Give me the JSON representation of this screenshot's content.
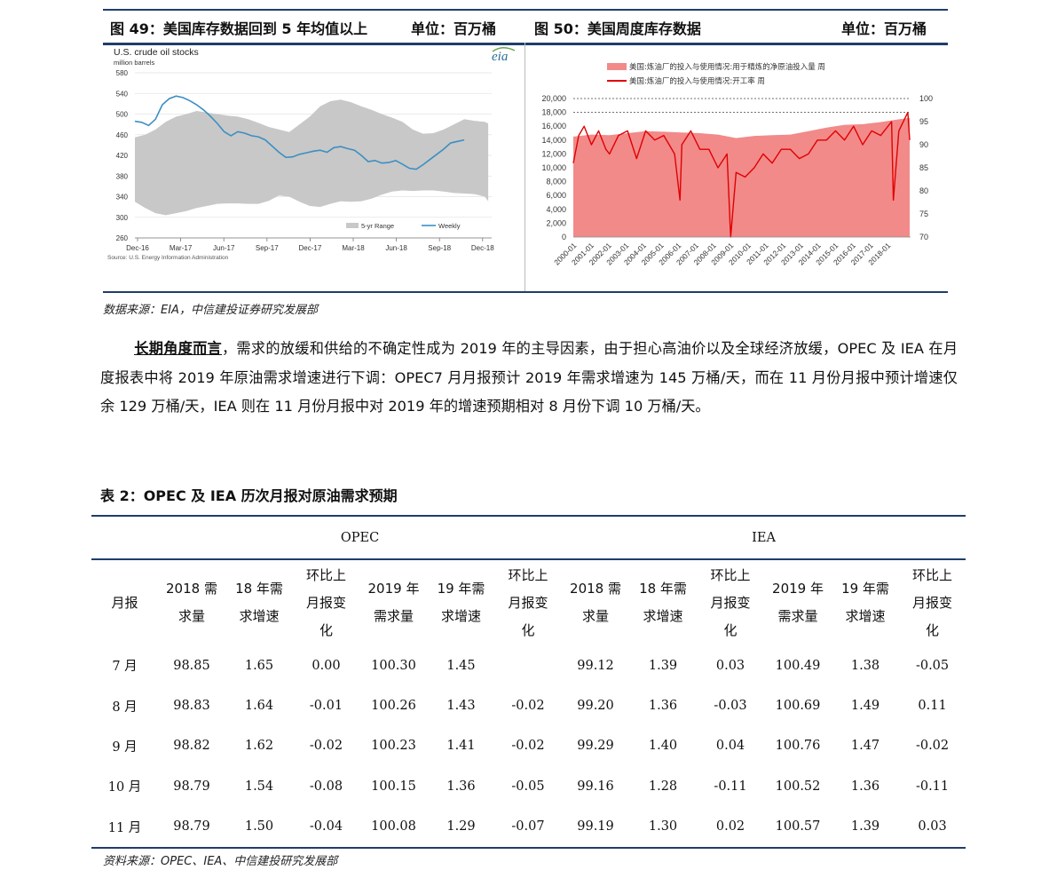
{
  "figure_header": {
    "left_title": "图 49：美国库存数据回到 5 年均值以上",
    "left_unit": "单位：百万桶",
    "right_title": "图 50：美国周度库存数据",
    "right_unit": "单位：百万桶"
  },
  "chart_left": {
    "chart_data": {
      "type": "area",
      "title": "U.S. crude oil stocks",
      "subtitle": "million barrels",
      "logo": "eia",
      "x_ticks": [
        "Dec-16",
        "Mar-17",
        "Jun-17",
        "Sep-17",
        "Dec-17",
        "Mar-18",
        "Jun-18",
        "Sep-18",
        "Dec-18"
      ],
      "y_ticks": [
        260,
        300,
        340,
        380,
        420,
        460,
        500,
        540,
        580
      ],
      "ylim": [
        260,
        580
      ],
      "legend": [
        "5-yr Range",
        "Weekly"
      ],
      "legend_position": "bottom-right",
      "source": "Source: U.S. Energy Information Administration",
      "series": [
        {
          "name": "5-yr Range",
          "type": "range",
          "x": [
            0,
            3,
            6,
            9,
            12,
            15,
            18,
            21,
            24,
            27,
            30,
            33,
            36,
            39,
            42,
            45,
            48,
            51,
            54,
            57,
            60,
            63,
            66,
            69,
            72,
            75,
            78,
            81,
            84,
            87,
            90,
            93,
            96,
            99,
            102,
            103
          ],
          "high": [
            455,
            460,
            470,
            485,
            495,
            500,
            506,
            503,
            500,
            497,
            495,
            490,
            483,
            475,
            470,
            465,
            480,
            495,
            515,
            525,
            528,
            523,
            515,
            508,
            500,
            493,
            485,
            470,
            462,
            463,
            470,
            480,
            490,
            487,
            485,
            482
          ],
          "low": [
            330,
            318,
            308,
            304,
            308,
            312,
            318,
            322,
            326,
            327,
            327,
            326,
            326,
            332,
            342,
            340,
            330,
            322,
            320,
            326,
            331,
            330,
            331,
            336,
            344,
            350,
            352,
            351,
            352,
            352,
            350,
            347,
            346,
            345,
            340,
            331
          ]
        },
        {
          "name": "Weekly",
          "type": "line",
          "color": "#3c8fc4",
          "x": [
            0,
            2,
            4,
            6,
            8,
            10,
            12,
            14,
            16,
            18,
            20,
            22,
            24,
            26,
            28,
            30,
            32,
            34,
            36,
            38,
            40,
            42,
            44,
            46,
            48,
            50,
            52,
            54,
            56,
            58,
            60,
            62,
            64,
            66,
            68,
            70,
            72,
            74,
            76,
            78,
            80,
            82,
            84,
            86,
            88,
            90,
            92,
            94,
            96
          ],
          "y": [
            486,
            484,
            478,
            490,
            518,
            530,
            535,
            532,
            526,
            518,
            508,
            496,
            482,
            466,
            458,
            466,
            463,
            458,
            456,
            450,
            438,
            426,
            416,
            417,
            422,
            425,
            428,
            430,
            426,
            435,
            437,
            433,
            430,
            420,
            408,
            410,
            405,
            406,
            410,
            403,
            395,
            393,
            402,
            412,
            422,
            432,
            444,
            447,
            450
          ]
        }
      ]
    }
  },
  "chart_right": {
    "chart_data": {
      "type": "area",
      "title": "",
      "legend": [
        "美国:炼油厂的投入与使用情况:用于精炼的净原油投入量 周",
        "美国:炼油厂的投入与使用情况:开工率 周"
      ],
      "legend_position": "top",
      "x_ticks": [
        "2000-01",
        "2001-01",
        "2002-01",
        "2003-01",
        "2004-01",
        "2005-01",
        "2006-01",
        "2007-01",
        "2008-01",
        "2009-01",
        "2010-01",
        "2011-01",
        "2012-01",
        "2013-01",
        "2014-01",
        "2015-01",
        "2016-01",
        "2017-01",
        "2018-01"
      ],
      "y_left_ticks": [
        0,
        2000,
        4000,
        6000,
        8000,
        10000,
        12000,
        14000,
        16000,
        18000,
        20000
      ],
      "y_right_ticks": [
        70,
        75,
        80,
        85,
        90,
        95,
        100
      ],
      "ylim_left": [
        0,
        20000
      ],
      "ylim_right": [
        70,
        100
      ],
      "series": [
        {
          "name": "美国:炼油厂的投入与使用情况:用于精炼的净原油投入量 周",
          "type": "area",
          "axis": "left",
          "color": "#f28a8a",
          "x": [
            2000,
            2001,
            2002,
            2003,
            2004,
            2005,
            2006,
            2007,
            2008,
            2009,
            2010,
            2011,
            2012,
            2013,
            2014,
            2015,
            2016,
            2017,
            2018,
            2018.6
          ],
          "y": [
            14500,
            14800,
            14700,
            15000,
            15300,
            15200,
            15100,
            15000,
            14800,
            14300,
            14600,
            14700,
            14800,
            15300,
            15800,
            16200,
            16300,
            16600,
            17000,
            17200
          ]
        },
        {
          "name": "美国:炼油厂的投入与使用情况:开工率 周",
          "type": "line",
          "axis": "right",
          "color": "#e00000",
          "x": [
            2000,
            2000.3,
            2000.6,
            2001,
            2001.4,
            2001.8,
            2002,
            2002.5,
            2003,
            2003.5,
            2004,
            2004.5,
            2005,
            2005.6,
            2005.9,
            2006,
            2006.5,
            2007,
            2007.5,
            2008,
            2008.5,
            2008.7,
            2009,
            2009.5,
            2010,
            2010.5,
            2011,
            2011.5,
            2012,
            2012.5,
            2013,
            2013.5,
            2014,
            2014.5,
            2015,
            2015.5,
            2016,
            2016.5,
            2017,
            2017.6,
            2017.7,
            2018,
            2018.5,
            2018.6
          ],
          "y": [
            86,
            92,
            94,
            90,
            93,
            89,
            88,
            92,
            93,
            87,
            93,
            91,
            92,
            88,
            78,
            90,
            93,
            89,
            89,
            85,
            88,
            70,
            84,
            83,
            85,
            88,
            86,
            89,
            89,
            87,
            88,
            91,
            91,
            93,
            91,
            94,
            90,
            93,
            92,
            95,
            78,
            93,
            97,
            91
          ]
        }
      ],
      "reference_lines": [
        18000,
        20000
      ]
    }
  },
  "figure_source": "数据来源：EIA，中信建投证券研究发展部",
  "paragraph": {
    "lead": "长期角度而言",
    "text": "，需求的放缓和供给的不确定性成为 2019 年的主导因素，由于担心高油价以及全球经济放缓，OPEC 及 IEA 在月度报表中将 2019 年原油需求增速进行下调：OPEC7 月月报预计 2019 年需求增速为 145 万桶/天，而在 11 月份月报中预计增速仅余 129 万桶/天，IEA 则在 11 月份月报中对 2019 年的增速预期相对 8 月份下调 10 万桶/天。"
  },
  "table": {
    "title": "表 2：OPEC 及 IEA 历次月报对原油需求预期",
    "group_opec": "OPEC",
    "group_iea": "IEA",
    "columns": [
      "月报",
      "2018 需求量",
      "18 年需求增速",
      "环比上月报变化",
      "2019 年需求量",
      "19 年需求增速",
      "环比上月报变化",
      "2018 需求量",
      "18 年需求增速",
      "环比上月报变化",
      "2019 年需求量",
      "19 年需求增速",
      "环比上月报变化"
    ],
    "rows": [
      [
        "7 月",
        "98.85",
        "1.65",
        "0.00",
        "100.30",
        "1.45",
        "",
        "99.12",
        "1.39",
        "0.03",
        "100.49",
        "1.38",
        "-0.05"
      ],
      [
        "8 月",
        "98.83",
        "1.64",
        "-0.01",
        "100.26",
        "1.43",
        "-0.02",
        "99.20",
        "1.36",
        "-0.03",
        "100.69",
        "1.49",
        "0.11"
      ],
      [
        "9 月",
        "98.82",
        "1.62",
        "-0.02",
        "100.23",
        "1.41",
        "-0.02",
        "99.29",
        "1.40",
        "0.04",
        "100.76",
        "1.47",
        "-0.02"
      ],
      [
        "10 月",
        "98.79",
        "1.54",
        "-0.08",
        "100.15",
        "1.36",
        "-0.05",
        "99.16",
        "1.28",
        "-0.11",
        "100.52",
        "1.36",
        "-0.11"
      ],
      [
        "11 月",
        "98.79",
        "1.50",
        "-0.04",
        "100.08",
        "1.29",
        "-0.07",
        "99.19",
        "1.30",
        "0.02",
        "100.57",
        "1.39",
        "0.03"
      ]
    ],
    "source": "资料来源：OPEC、IEA、中信建投研究发展部"
  }
}
